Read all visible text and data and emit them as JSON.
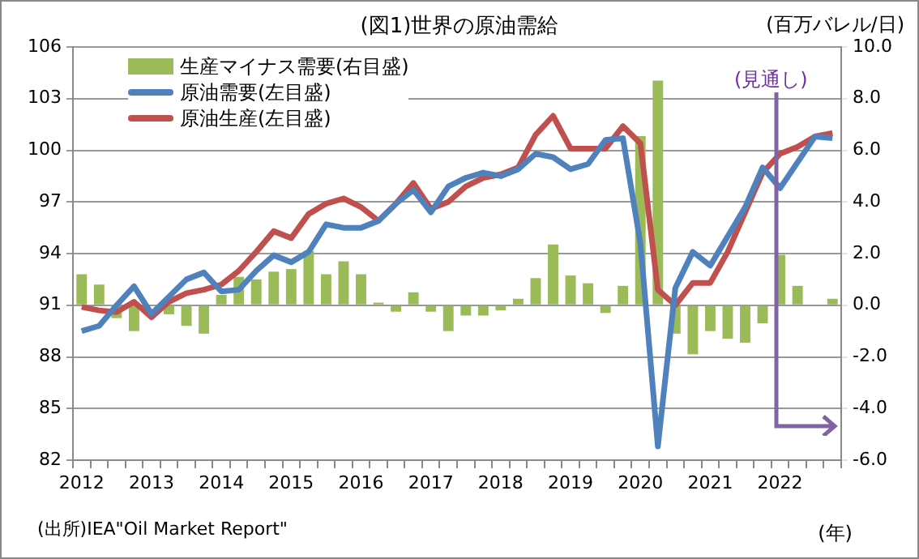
{
  "chart_data": {
    "type": "line",
    "title": "(図1)世界の原油需給",
    "y2label": "(百万バレル/日)",
    "xlabel": "(年)",
    "categories": [
      "2012",
      null,
      null,
      null,
      "2013",
      null,
      null,
      null,
      "2014",
      null,
      null,
      null,
      "2015",
      null,
      null,
      null,
      "2016",
      null,
      null,
      null,
      "2017",
      null,
      null,
      null,
      "2018",
      null,
      null,
      null,
      "2019",
      null,
      null,
      null,
      "2020",
      null,
      null,
      null,
      "2021",
      null,
      null,
      null,
      "2022",
      null,
      null,
      null
    ],
    "series": [
      {
        "name": "生産マイナス需要(右目盛)",
        "type": "bar",
        "axis": "y2",
        "color": "#9bbb59",
        "values": [
          1.2,
          0.8,
          -0.5,
          -1.0,
          0.0,
          -0.35,
          -0.8,
          -1.1,
          0.4,
          1.1,
          1.0,
          1.3,
          1.4,
          2.1,
          1.2,
          1.7,
          1.2,
          0.1,
          -0.25,
          0.5,
          -0.25,
          -1.0,
          -0.4,
          -0.4,
          -0.2,
          0.25,
          1.05,
          2.35,
          1.15,
          0.85,
          -0.3,
          0.75,
          6.55,
          8.7,
          -1.1,
          -1.9,
          -1.0,
          -1.3,
          -1.45,
          -0.7,
          1.95,
          0.75,
          0.0,
          0.25
        ]
      },
      {
        "name": "原油需要(左目盛)",
        "color": "#4f81bd",
        "values": [
          89.5,
          89.8,
          91.0,
          92.1,
          90.5,
          91.5,
          92.5,
          92.9,
          91.8,
          91.9,
          93.0,
          93.9,
          93.5,
          94.1,
          95.7,
          95.5,
          95.5,
          95.9,
          96.9,
          97.7,
          96.4,
          97.9,
          98.4,
          98.7,
          98.5,
          98.9,
          99.8,
          99.6,
          98.9,
          99.2,
          100.6,
          100.7,
          94.6,
          82.8,
          92.0,
          94.1,
          93.3,
          95.0,
          96.7,
          99.0,
          97.8,
          99.3,
          100.8,
          100.7
        ]
      },
      {
        "name": "原油生産(左目盛)",
        "color": "#c0504d",
        "values": [
          90.9,
          90.7,
          90.6,
          91.2,
          90.3,
          91.2,
          91.7,
          91.9,
          92.2,
          93.0,
          94.1,
          95.3,
          94.9,
          96.3,
          96.9,
          97.2,
          96.7,
          95.9,
          96.9,
          98.1,
          96.6,
          97.0,
          97.9,
          98.4,
          98.6,
          99.0,
          100.9,
          102.0,
          100.1,
          100.1,
          100.1,
          101.4,
          100.4,
          91.9,
          91.0,
          92.3,
          92.3,
          94.1,
          96.4,
          98.7,
          99.8,
          100.2,
          100.8,
          101.0
        ]
      }
    ],
    "ylim": [
      82,
      106
    ],
    "yticks": [
      82,
      85,
      88,
      91,
      94,
      97,
      100,
      103,
      106
    ],
    "y2lim": [
      -6,
      10
    ],
    "y2ticks": [
      {
        "value": -6,
        "label": "-6.0"
      },
      {
        "value": -4,
        "label": "-4.0"
      },
      {
        "value": -2,
        "label": "-2.0"
      },
      {
        "value": 0,
        "label": "0.0"
      },
      {
        "value": 2,
        "label": "2.0"
      },
      {
        "value": 4,
        "label": "4.0"
      },
      {
        "value": 6,
        "label": "6.0"
      },
      {
        "value": 8,
        "label": "8.0"
      },
      {
        "value": 10,
        "label": "10.0"
      }
    ],
    "grid": "y",
    "legend": "top left",
    "marker": "none",
    "line_style": "solid",
    "annotations": [
      "(見通し)",
      "(出所)IEA\"Oil Market Report\""
    ]
  }
}
